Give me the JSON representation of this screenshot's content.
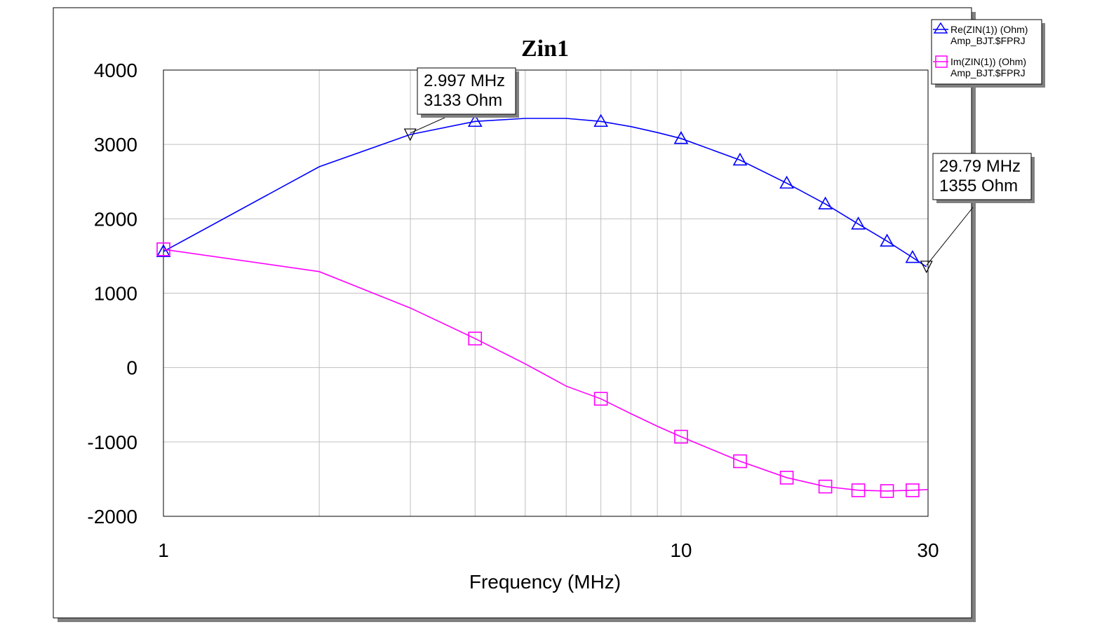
{
  "chart_data": {
    "type": "line",
    "title": "Zin1",
    "xlabel": "Frequency (MHz)",
    "ylabel": "",
    "x_scale": "log",
    "xlim": [
      1,
      30
    ],
    "ylim": [
      -2000,
      4000
    ],
    "grid": true,
    "legend_position": "top-right",
    "x_ticks": [
      {
        "value": 1,
        "label": "1"
      },
      {
        "value": 10,
        "label": "10"
      },
      {
        "value": 30,
        "label": "30"
      }
    ],
    "y_ticks": [
      {
        "value": 4000,
        "label": "4000"
      },
      {
        "value": 3000,
        "label": "3000"
      },
      {
        "value": 2000,
        "label": "2000"
      },
      {
        "value": 1000,
        "label": "1000"
      },
      {
        "value": 0,
        "label": "0"
      },
      {
        "value": -1000,
        "label": "-1000"
      },
      {
        "value": -2000,
        "label": "-2000"
      }
    ],
    "x_minor_gridlines": [
      2,
      3,
      4,
      5,
      6,
      7,
      8,
      9,
      20
    ],
    "series": [
      {
        "name": "Re(ZIN(1)) (Ohm)",
        "source": "Amp_BJT.$FPRJ",
        "color": "#0000ff",
        "marker": "triangle",
        "points": [
          {
            "x": 1,
            "y": 1560
          },
          {
            "x": 2,
            "y": 2700
          },
          {
            "x": 2.997,
            "y": 3133
          },
          {
            "x": 4,
            "y": 3310
          },
          {
            "x": 5,
            "y": 3350
          },
          {
            "x": 6,
            "y": 3350
          },
          {
            "x": 7,
            "y": 3310
          },
          {
            "x": 8,
            "y": 3240
          },
          {
            "x": 9,
            "y": 3160
          },
          {
            "x": 10,
            "y": 3080
          },
          {
            "x": 13,
            "y": 2790
          },
          {
            "x": 16,
            "y": 2480
          },
          {
            "x": 19,
            "y": 2200
          },
          {
            "x": 22,
            "y": 1930
          },
          {
            "x": 25,
            "y": 1700
          },
          {
            "x": 28,
            "y": 1480
          },
          {
            "x": 29.79,
            "y": 1355
          }
        ],
        "marker_x": [
          1,
          4,
          7,
          10,
          13,
          16,
          19,
          22,
          25,
          28
        ]
      },
      {
        "name": "Im(ZIN(1)) (Ohm)",
        "source": "Amp_BJT.$FPRJ",
        "color": "#ff00ff",
        "marker": "square",
        "points": [
          {
            "x": 1,
            "y": 1590
          },
          {
            "x": 2,
            "y": 1290
          },
          {
            "x": 3,
            "y": 800
          },
          {
            "x": 4,
            "y": 390
          },
          {
            "x": 5,
            "y": 50
          },
          {
            "x": 6,
            "y": -250
          },
          {
            "x": 7,
            "y": -420
          },
          {
            "x": 8,
            "y": -620
          },
          {
            "x": 9,
            "y": -790
          },
          {
            "x": 10,
            "y": -930
          },
          {
            "x": 13,
            "y": -1260
          },
          {
            "x": 16,
            "y": -1480
          },
          {
            "x": 19,
            "y": -1600
          },
          {
            "x": 22,
            "y": -1650
          },
          {
            "x": 25,
            "y": -1660
          },
          {
            "x": 28,
            "y": -1650
          },
          {
            "x": 30,
            "y": -1640
          }
        ],
        "marker_x": [
          1,
          4,
          7,
          10,
          13,
          16,
          19,
          22,
          25,
          28
        ]
      }
    ],
    "markers": [
      {
        "series": 0,
        "x": 2.997,
        "y": 3133,
        "line1": "2.997 MHz",
        "line2": "3133 Ohm"
      },
      {
        "series": 0,
        "x": 29.79,
        "y": 1355,
        "line1": "29.79 MHz",
        "line2": "1355 Ohm"
      }
    ]
  }
}
